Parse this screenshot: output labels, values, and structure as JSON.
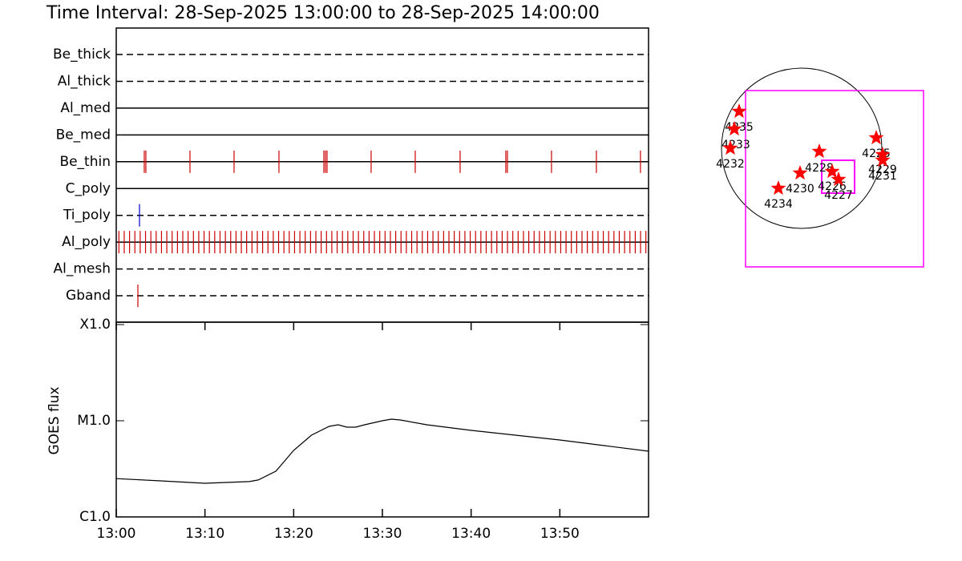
{
  "chart_data": [
    {
      "type": "timeline",
      "title": "Time Interval: 28-Sep-2025 13:00:00 to 28-Sep-2025 14:00:00",
      "categories": [
        "Be_thick",
        "Al_thick",
        "Al_med",
        "Be_med",
        "Be_thin",
        "C_poly",
        "Ti_poly",
        "Al_poly",
        "Al_mesh",
        "Gband"
      ],
      "line_styles": [
        "dashed",
        "dashed",
        "solid",
        "solid",
        "solid",
        "solid",
        "dashed",
        "solid",
        "dashed",
        "dashed"
      ],
      "colors": [
        "#cc0000",
        "#cc0000",
        "#cc0000",
        "#cc0000",
        "#cc0000",
        "#cc0000",
        "#0000cc",
        "#cc0000",
        "#cc0000",
        "#cc0000"
      ],
      "events": [
        [],
        [],
        [],
        [],
        [
          3.16,
          3.34,
          8.31,
          13.28,
          18.34,
          23.4,
          23.58,
          23.76,
          28.73,
          33.7,
          38.76,
          43.91,
          44.09,
          49.06,
          54.12,
          59.09
        ],
        [],
        [
          2.62
        ],
        [
          0.3,
          0.9,
          1.5,
          2.1,
          2.7,
          3.3,
          3.9,
          4.5,
          5.1,
          5.7,
          6.3,
          6.9,
          7.5,
          8.1,
          8.7,
          9.3,
          9.9,
          10.5,
          11.1,
          11.7,
          12.3,
          12.9,
          13.5,
          14.1,
          14.7,
          15.3,
          15.9,
          16.5,
          17.1,
          17.7,
          18.3,
          18.9,
          19.5,
          20.1,
          20.7,
          21.3,
          21.9,
          22.5,
          23.1,
          23.7,
          24.3,
          24.9,
          25.5,
          26.1,
          26.7,
          27.3,
          27.9,
          28.5,
          29.1,
          29.7,
          30.3,
          30.9,
          31.5,
          32.1,
          32.7,
          33.3,
          33.9,
          34.5,
          35.1,
          35.7,
          36.3,
          36.9,
          37.5,
          38.1,
          38.7,
          39.3,
          39.9,
          40.5,
          41.1,
          41.7,
          42.3,
          42.9,
          43.5,
          44.1,
          44.7,
          45.3,
          45.9,
          46.5,
          47.1,
          47.7,
          48.3,
          48.9,
          49.5,
          50.1,
          50.7,
          51.3,
          51.9,
          52.5,
          53.1,
          53.7,
          54.3,
          54.9,
          55.5,
          56.1,
          56.7,
          57.3,
          57.9,
          58.5,
          59.1,
          59.7
        ],
        [],
        [
          2.44
        ]
      ],
      "xlim": [
        0,
        60
      ]
    },
    {
      "type": "line",
      "ylabel": "GOES flux",
      "log_y": true,
      "color": "#000000",
      "x": [
        0,
        5,
        10,
        15,
        16,
        18,
        20,
        22,
        24,
        25,
        26,
        27,
        28,
        30,
        31,
        32,
        35,
        40,
        45,
        50,
        55,
        60
      ],
      "values": [
        2.5e-06,
        2.37e-06,
        2.24e-06,
        2.33e-06,
        2.42e-06,
        2.99e-06,
        4.92e-06,
        7.08e-06,
        8.75e-06,
        9.09e-06,
        8.58e-06,
        8.58e-06,
        9.09e-06,
        1e-05,
        1.04e-05,
        1.02e-05,
        9.09e-06,
        7.94e-06,
        7.08e-06,
        6.31e-06,
        5.52e-06,
        4.82e-06
      ],
      "xlim": [
        0,
        60
      ],
      "xticks": [
        {
          "value": 0,
          "label": "13:00"
        },
        {
          "value": 10,
          "label": "13:10"
        },
        {
          "value": 20,
          "label": "13:20"
        },
        {
          "value": 30,
          "label": "13:30"
        },
        {
          "value": 40,
          "label": "13:40"
        },
        {
          "value": 50,
          "label": "13:50"
        }
      ],
      "ylim": [
        1e-06,
        0.0001
      ],
      "yticks": [
        {
          "value": 1e-06,
          "label": "C1.0"
        },
        {
          "value": 1e-05,
          "label": "M1.0"
        },
        {
          "value": 0.0001,
          "label": "X1.0"
        }
      ]
    },
    {
      "type": "map",
      "marker_color": "#ff0000",
      "labels": [
        "4235",
        "4233",
        "4232",
        "4228",
        "4230",
        "4226",
        "4227",
        "4234",
        "4225",
        "4229",
        "4231"
      ]
    }
  ]
}
